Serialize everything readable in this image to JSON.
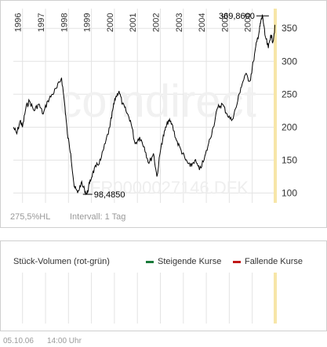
{
  "chart_data": {
    "type": "line",
    "watermark": "comdirect",
    "isin": "FR0000027146.DFK",
    "year_labels": [
      "1996",
      "1997",
      "1998",
      "1999",
      "2000",
      "2001",
      "2002",
      "2003",
      "2004",
      "2005",
      "2006"
    ],
    "y_ticks": [
      100,
      150,
      200,
      250,
      300,
      350
    ],
    "ylim": [
      85,
      380
    ],
    "max_label": "369,8600",
    "min_label": "98,4850",
    "x": [
      1995.6,
      1995.75,
      1995.9,
      1996.0,
      1996.15,
      1996.3,
      1996.5,
      1996.7,
      1996.9,
      1997.1,
      1997.3,
      1997.5,
      1997.7,
      1997.85,
      1997.95,
      1998.1,
      1998.25,
      1998.4,
      1998.55,
      1998.7,
      1998.8,
      1998.92,
      1999.05,
      1999.2,
      1999.4,
      1999.6,
      1999.8,
      1999.95,
      2000.05,
      2000.2,
      2000.35,
      2000.5,
      2000.7,
      2000.9,
      2001.1,
      2001.3,
      2001.5,
      2001.7,
      2001.85,
      2002.05,
      2002.2,
      2002.35,
      2002.5,
      2002.7,
      2002.9,
      2003.1,
      2003.3,
      2003.5,
      2003.7,
      2003.9,
      2004.1,
      2004.3,
      2004.5,
      2004.7,
      2004.9,
      2005.1,
      2005.3,
      2005.5,
      2005.7,
      2005.9,
      2006.05,
      2006.2,
      2006.3,
      2006.37,
      2006.45,
      2006.55,
      2006.7,
      2006.8,
      2006.9,
      2007.0
    ],
    "y": [
      200,
      190,
      210,
      200,
      230,
      240,
      225,
      235,
      220,
      240,
      250,
      260,
      275,
      230,
      190,
      160,
      110,
      100,
      115,
      105,
      98,
      115,
      130,
      140,
      150,
      175,
      200,
      230,
      245,
      255,
      235,
      225,
      210,
      175,
      185,
      170,
      145,
      160,
      125,
      175,
      195,
      210,
      205,
      180,
      165,
      150,
      140,
      150,
      135,
      150,
      175,
      200,
      230,
      235,
      220,
      210,
      230,
      260,
      280,
      270,
      300,
      330,
      345,
      360,
      369,
      340,
      320,
      340,
      330,
      355
    ],
    "series": [
      {
        "values_ref": "y"
      }
    ],
    "xlim": [
      1995.6,
      2007.0
    ]
  },
  "info": {
    "change": "275,5%HL",
    "interval": "Intervall: 1 Tag"
  },
  "volume": {
    "title": "Stück-Volumen (rot-grün)",
    "legend_up": "Steigende Kurse",
    "legend_down": "Fallende Kurse",
    "color_up": "#1a7a3a",
    "color_down": "#c01818"
  },
  "footer": {
    "date": "05.10.06",
    "time": "14:00 Uhr"
  },
  "colors": {
    "line": "#000000",
    "grid": "#e3e3e3",
    "highlight": "#f7e6a8",
    "watermark": "#f1f1f1"
  }
}
